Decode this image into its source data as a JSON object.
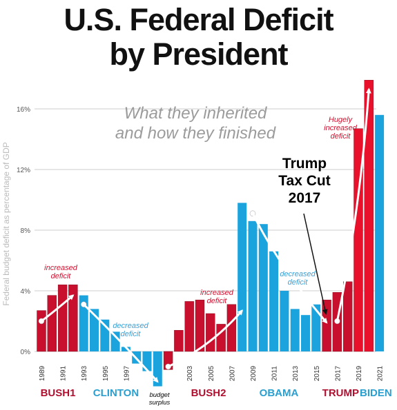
{
  "title_lines": [
    "U.S. Federal Deficit",
    "by President"
  ],
  "subtitle_lines": [
    "What they inherited",
    "and how they finished"
  ],
  "colors": {
    "red": "#c8102e",
    "blue": "#1aa3dc",
    "bright_red": "#e8102a",
    "annotation_red": "#d0102e",
    "annotation_blue": "#3aa0d6",
    "grid": "#cccccc",
    "axis_text": "#555555"
  },
  "chart_data": {
    "type": "bar",
    "ylabel": "Federal budget deficit as percentage of GDP",
    "ylim": [
      -2.2,
      18
    ],
    "yticks": [
      0,
      4,
      8,
      12,
      16
    ],
    "ytick_labels": [
      "0%",
      "4%",
      "8%",
      "12%",
      "16%"
    ],
    "grid": true,
    "years": [
      1989,
      1990,
      1991,
      1992,
      1993,
      1994,
      1995,
      1996,
      1997,
      1998,
      1999,
      2000,
      2001,
      2002,
      2003,
      2004,
      2005,
      2006,
      2007,
      2008,
      2009,
      2010,
      2011,
      2012,
      2013,
      2014,
      2015,
      2016,
      2017,
      2018,
      2019,
      2020,
      2021
    ],
    "values": [
      2.7,
      3.7,
      4.4,
      4.4,
      3.7,
      2.8,
      2.1,
      1.3,
      0.3,
      -0.8,
      -1.3,
      -2.3,
      -1.2,
      1.4,
      3.3,
      3.4,
      2.5,
      1.8,
      3.1,
      9.8,
      8.6,
      8.4,
      6.6,
      4.0,
      2.8,
      2.4,
      3.1,
      3.4,
      3.9,
      4.6,
      14.7,
      17.9,
      15.6
    ],
    "colors": [
      "red",
      "red",
      "red",
      "red",
      "blue",
      "blue",
      "blue",
      "blue",
      "blue",
      "blue",
      "blue",
      "blue",
      "red",
      "red",
      "red",
      "red",
      "red",
      "red",
      "red",
      "blue",
      "blue",
      "blue",
      "blue",
      "blue",
      "blue",
      "blue",
      "blue",
      "red",
      "red",
      "red",
      "bright_red",
      "bright_red",
      "blue"
    ],
    "xtick_labels": [
      "1989",
      "1991",
      "1993",
      "1995",
      "1997",
      "2003",
      "2005",
      "2007",
      "2009",
      "2011",
      "2013",
      "2015",
      "2017",
      "2019",
      "2021"
    ],
    "presidents": [
      {
        "name": "BUSH1",
        "color": "red"
      },
      {
        "name": "CLINTON",
        "color": "blue"
      },
      {
        "name": "BUSH2",
        "color": "red"
      },
      {
        "name": "OBAMA",
        "color": "blue"
      },
      {
        "name": "TRUMP",
        "color": "red"
      },
      {
        "name": "BIDEN",
        "color": "blue"
      }
    ],
    "annotations": [
      {
        "lines": [
          "increased",
          "deficit"
        ],
        "color": "annotation_red"
      },
      {
        "lines": [
          "decreased",
          "deficit"
        ],
        "color": "annotation_blue"
      },
      {
        "lines": [
          "budget",
          "surplus"
        ],
        "color": "black"
      },
      {
        "lines": [
          "increased",
          "deficit"
        ],
        "color": "annotation_red"
      },
      {
        "lines": [
          "decreased",
          "deficit"
        ],
        "color": "annotation_blue"
      },
      {
        "lines": [
          "Hugely",
          "increased",
          "deficit"
        ],
        "color": "annotation_red"
      },
      {
        "lines": [
          "Trump",
          "Tax Cut",
          "2017"
        ],
        "color": "black"
      }
    ]
  }
}
